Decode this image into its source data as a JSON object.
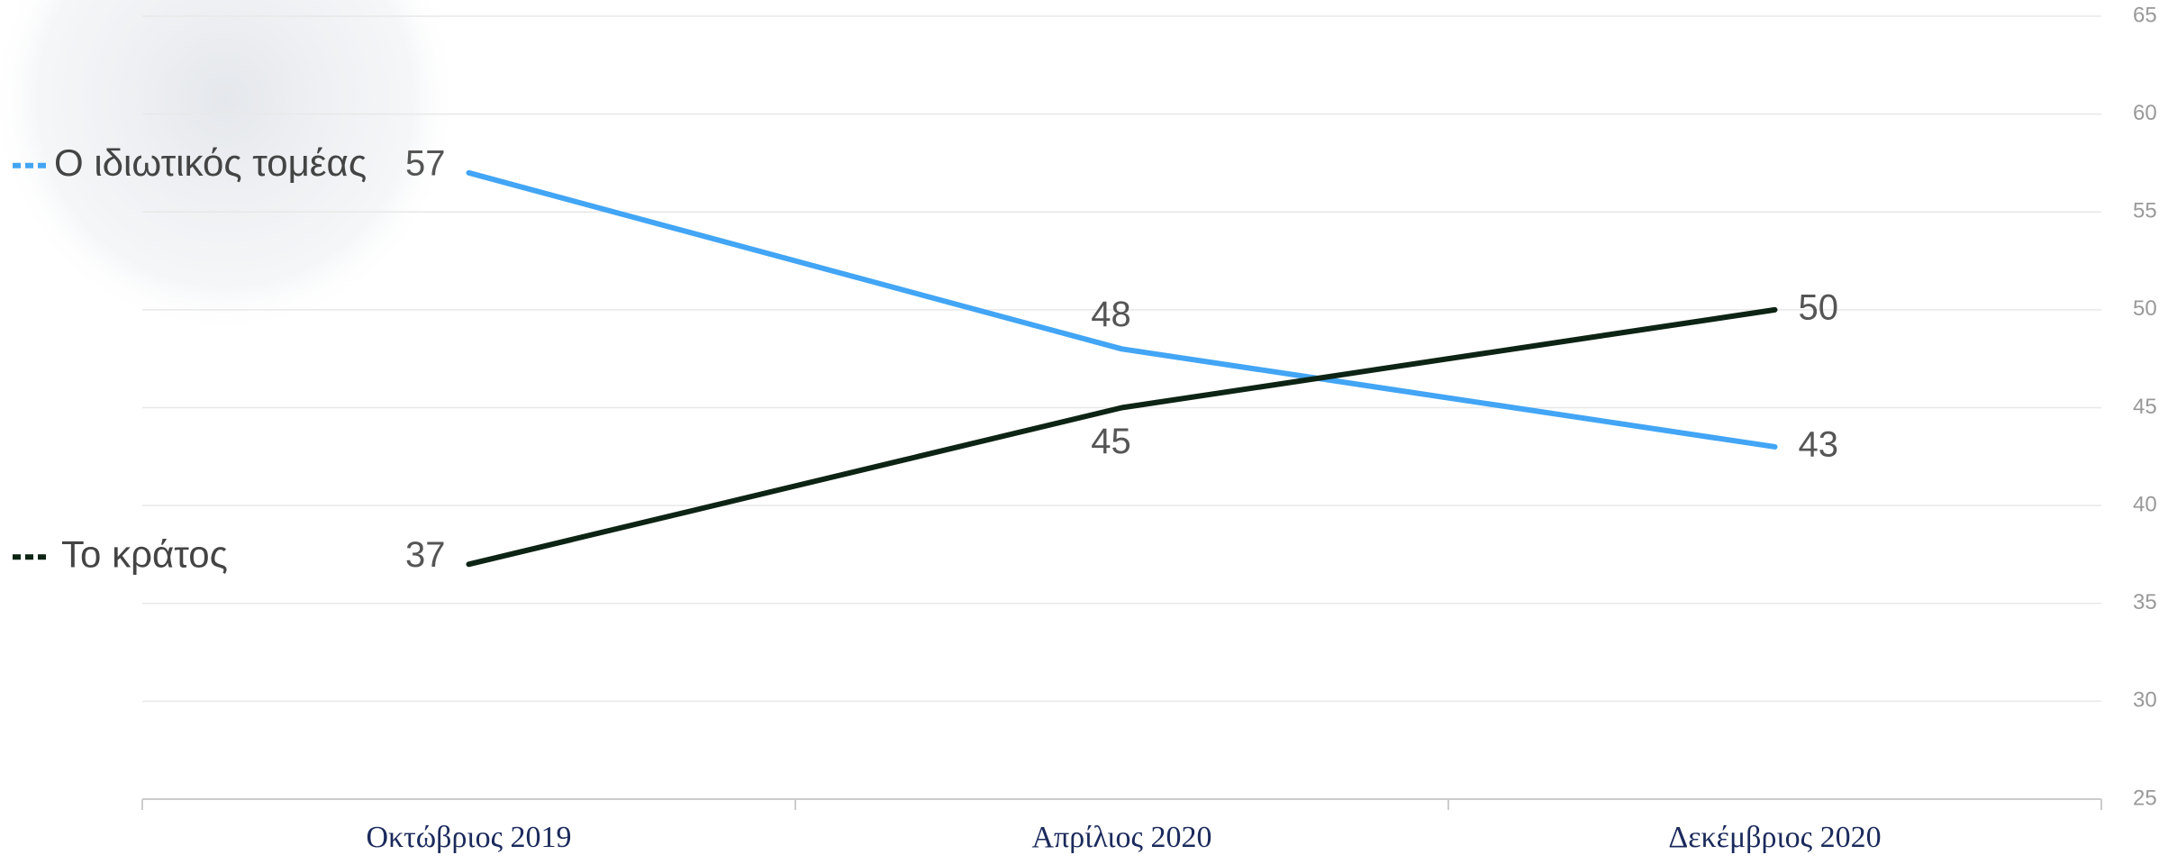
{
  "chart_data": {
    "type": "line",
    "categories": [
      "Οκτώβριος 2019",
      "Απρίλιος 2020",
      "Δεκέμβριος 2020"
    ],
    "series": [
      {
        "name": "Ο ιδιωτικός τομέας",
        "color": "#42a5f5",
        "values": [
          57,
          48,
          43
        ]
      },
      {
        "name": "Το κράτος",
        "color": "#0d2414",
        "values": [
          37,
          45,
          50
        ]
      }
    ],
    "ylim": [
      25,
      65
    ],
    "yticks": [
      25,
      30,
      35,
      40,
      45,
      50,
      55,
      60,
      65
    ],
    "grid": true
  }
}
